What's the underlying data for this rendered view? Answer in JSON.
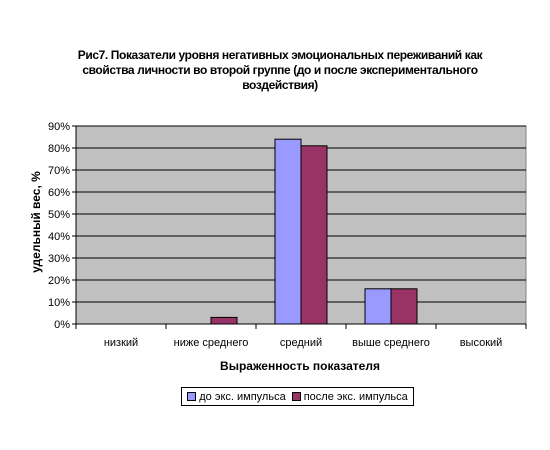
{
  "chart_data": {
    "type": "bar",
    "title": "Рис7. Показатели уровня негативных эмоциональных переживаний как свойства личности во  второй группе (до и после экспериментального воздействия)",
    "xlabel": "Выраженность показателя",
    "ylabel": "удельный вес, %",
    "categories": [
      "низкий",
      "ниже среднего",
      "средний",
      "выше среднего",
      "высокий"
    ],
    "series": [
      {
        "name": "до экс. импульса",
        "color": "#9999ff",
        "values": [
          0,
          0,
          84,
          16,
          0
        ]
      },
      {
        "name": "после экс. импульса",
        "color": "#993366",
        "values": [
          0,
          3,
          81,
          16,
          0
        ]
      }
    ],
    "ylim": [
      0,
      90
    ],
    "yticks": [
      "0%",
      "10%",
      "20%",
      "30%",
      "40%",
      "50%",
      "60%",
      "70%",
      "80%",
      "90%"
    ],
    "plot_background": "#c0c0c0",
    "grid": true,
    "legend_position": "bottom"
  }
}
